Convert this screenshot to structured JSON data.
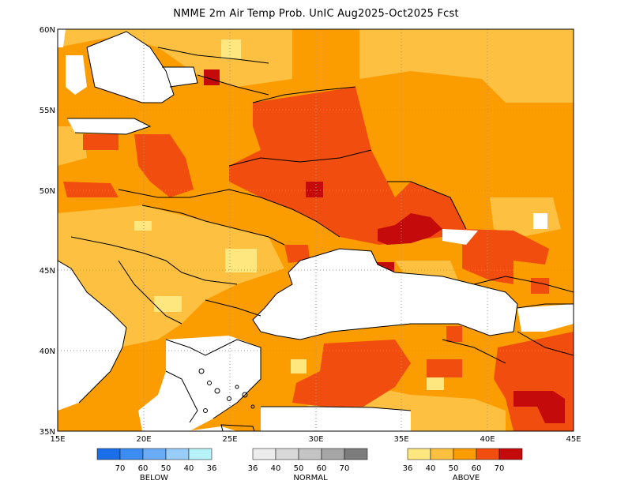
{
  "title": "NMME 2m Air Temp Prob. UnIC  Aug2025-Oct2025 Fcst",
  "map": {
    "lon_range": [
      15,
      45
    ],
    "lat_range": [
      35,
      60
    ],
    "lon_ticks": [
      "15E",
      "20E",
      "25E",
      "30E",
      "35E",
      "40E",
      "45E"
    ],
    "lat_ticks": [
      "35N",
      "40N",
      "45N",
      "50N",
      "55N",
      "60N"
    ],
    "grid": "dotted",
    "no_data_color": "#ffffff",
    "coastline_color": "#000000"
  },
  "legend": {
    "below": {
      "title": "BELOW",
      "labels": [
        "70",
        "60",
        "50",
        "40",
        "36"
      ],
      "colors": [
        "#1a6fe8",
        "#3c8df2",
        "#6aabf6",
        "#98cdf9",
        "#b8f2f9"
      ]
    },
    "normal": {
      "title": "NORMAL",
      "labels": [
        "36",
        "40",
        "50",
        "60",
        "70"
      ],
      "colors": [
        "#ececec",
        "#d8d8d8",
        "#c4c4c4",
        "#a6a6a6",
        "#7c7c7c"
      ]
    },
    "above": {
      "title": "ABOVE",
      "labels": [
        "36",
        "40",
        "50",
        "60",
        "70"
      ],
      "colors": [
        "#fde77e",
        "#fdc041",
        "#fb9d00",
        "#f14d0e",
        "#c40a0a"
      ]
    }
  }
}
